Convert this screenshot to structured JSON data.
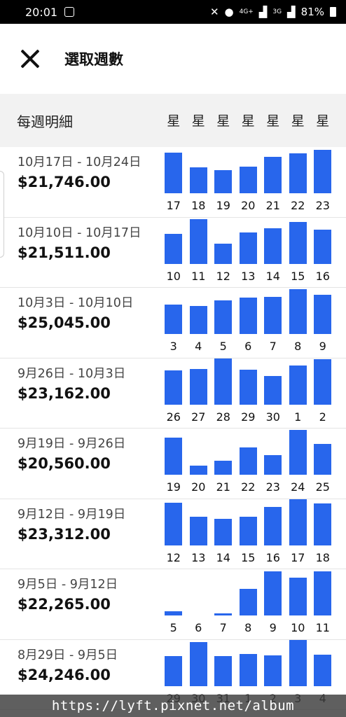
{
  "status_bar": {
    "time": "20:01",
    "network": "4G+",
    "network2": "3G",
    "battery": "81%"
  },
  "header": {
    "title": "選取週數"
  },
  "weekly": {
    "title": "每週明細",
    "day_headers": [
      "星",
      "星",
      "星",
      "星",
      "星",
      "星",
      "星"
    ]
  },
  "chart_data": {
    "type": "bar",
    "ylim": [
      0,
      1
    ],
    "weeks": [
      {
        "range": "10月17日 - 10月24日",
        "amount": "$21,746.00",
        "days": [
          "17",
          "18",
          "19",
          "20",
          "21",
          "22",
          "23"
        ],
        "values": [
          0.88,
          0.56,
          0.5,
          0.58,
          0.79,
          0.86,
          0.94
        ]
      },
      {
        "range": "10月10日 - 10月17日",
        "amount": "$21,511.00",
        "days": [
          "10",
          "11",
          "12",
          "13",
          "14",
          "15",
          "16"
        ],
        "values": [
          0.64,
          0.96,
          0.43,
          0.67,
          0.77,
          0.9,
          0.73
        ]
      },
      {
        "range": "10月3日 - 10月10日",
        "amount": "$25,045.00",
        "days": [
          "3",
          "4",
          "5",
          "6",
          "7",
          "8",
          "9"
        ],
        "values": [
          0.63,
          0.6,
          0.72,
          0.79,
          0.8,
          0.97,
          0.85
        ]
      },
      {
        "range": "9月26日 - 10月3日",
        "amount": "$23,162.00",
        "days": [
          "26",
          "27",
          "28",
          "29",
          "30",
          "1",
          "2"
        ],
        "values": [
          0.74,
          0.76,
          0.99,
          0.75,
          0.61,
          0.84,
          0.98
        ]
      },
      {
        "range": "9月19日 - 9月26日",
        "amount": "$20,560.00",
        "days": [
          "19",
          "20",
          "21",
          "22",
          "23",
          "24",
          "25"
        ],
        "values": [
          0.81,
          0.19,
          0.31,
          0.59,
          0.43,
          0.97,
          0.67
        ]
      },
      {
        "range": "9月12日 - 9月19日",
        "amount": "$23,312.00",
        "days": [
          "12",
          "13",
          "14",
          "15",
          "16",
          "17",
          "18"
        ],
        "values": [
          0.92,
          0.61,
          0.57,
          0.61,
          0.82,
          1.0,
          0.9
        ]
      },
      {
        "range": "9月5日 - 9月12日",
        "amount": "$22,265.00",
        "days": [
          "5",
          "6",
          "7",
          "8",
          "9",
          "10",
          "11"
        ],
        "values": [
          0.09,
          0.0,
          0.05,
          0.58,
          0.96,
          0.82,
          0.96
        ]
      },
      {
        "range": "8月29日 - 9月5日",
        "amount": "$24,246.00",
        "days": [
          "29",
          "30",
          "31",
          "1",
          "2",
          "3",
          "4"
        ],
        "values": [
          0.64,
          0.94,
          0.65,
          0.69,
          0.66,
          1.0,
          0.68
        ]
      }
    ]
  },
  "watermark": "https://lyft.pixnet.net/album"
}
